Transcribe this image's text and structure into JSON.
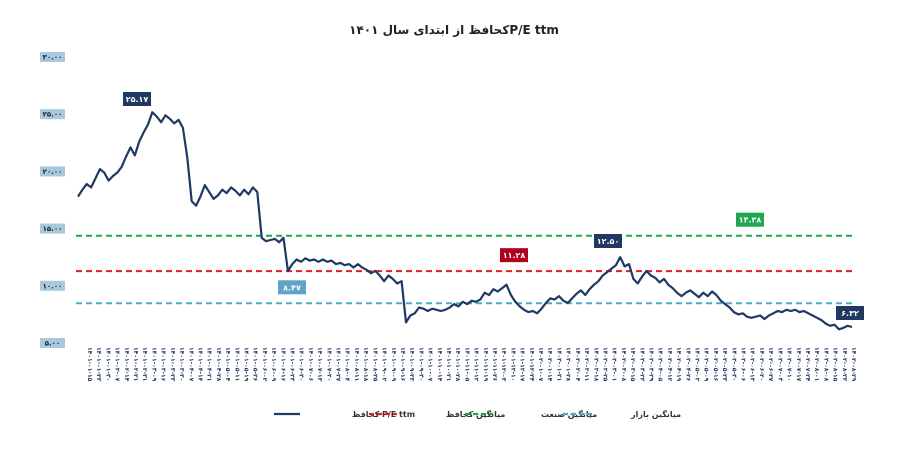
{
  "chart_data": {
    "type": "line",
    "title": "P/E ttmکحافظ از ابتدای سال ۱۴۰۱",
    "xlabel": "",
    "ylabel": "",
    "ylim": [
      5,
      30
    ],
    "yticks": [
      "۵.۰۰",
      "۱۰.۰۰",
      "۱۵.۰۰",
      "۲۰.۰۰",
      "۲۵.۰۰",
      "۳۰.۰۰"
    ],
    "ytick_values": [
      5,
      10,
      15,
      20,
      25,
      30
    ],
    "x_tick_labels": [
      "۱۴۰۱-۰۱-۱۵",
      "۱۴۰۱-۰۱-۲۳",
      "۱۴۰۱-۰۱-۳۰",
      "۱۴۰۱-۰۲-۰۷",
      "۱۴۰۱-۰۲-۱۴",
      "۱۴۰۱-۰۲-۲۱",
      "۱۴۰۱-۰۲-۳۱",
      "۱۴۰۱-۰۳-۰۹",
      "۱۴۰۱-۰۳-۱۶",
      "۱۴۰۱-۰۳-۲۳",
      "۱۴۰۱-۰۳-۳۰",
      "۱۴۰۱-۰۴-۰۷",
      "۱۴۰۱-۰۴-۱۴",
      "۱۴۰۱-۰۴-۲۱",
      "۱۴۰۱-۰۴-۲۸",
      "۱۴۰۱-۰۵-۰۴",
      "۱۴۰۱-۰۵-۱۱",
      "۱۴۰۱-۰۵-۱۹",
      "۱۴۰۱-۰۵-۲۶",
      "۱۴۰۱-۰۶-۰۲",
      "۱۴۰۱-۰۶-۰۹",
      "۱۴۰۱-۰۶-۱۶",
      "۱۴۰۱-۰۶-۲۳",
      "۱۴۰۱-۰۶-۳۰",
      "۱۴۰۱-۰۷-۰۶",
      "۱۴۰۱-۰۷-۱۳",
      "۱۴۰۱-۰۷-۲۰",
      "۱۴۰۱-۰۷-۲۷",
      "۱۴۰۱-۰۸-۰۴",
      "۱۴۰۱-۰۸-۱۱",
      "۱۴۰۱-۰۸-۱۸",
      "۱۴۰۱-۰۸-۲۵",
      "۱۴۰۱-۰۹-۰۲",
      "۱۴۰۱-۰۹-۰۹",
      "۱۴۰۱-۰۹-۱۶",
      "۱۴۰۱-۰۹-۲۳",
      "۱۴۰۱-۰۹-۳۰",
      "۱۴۰۱-۱۰-۰۷",
      "۱۴۰۱-۱۰-۱۴",
      "۱۴۰۱-۱۰-۲۱",
      "۱۴۰۱-۱۰-۲۸",
      "۱۴۰۱-۱۱-۰۵",
      "۱۴۰۱-۱۱-۱۲",
      "۱۴۰۱-۱۱-۱۹",
      "۱۴۰۱-۱۱-۲۶",
      "۱۴۰۱-۱۲-۰۳",
      "۱۴۰۱-۱۲-۱۰",
      "۱۴۰۱-۱۲-۱۷",
      "۱۴۰۱-۱۲-۲۴",
      "۱۴۰۲-۰۱-۰۷",
      "۱۴۰۲-۰۱-۱۴",
      "۱۴۰۲-۰۱-۲۱",
      "۱۴۰۲-۰۱-۲۸",
      "۱۴۰۲-۰۲-۰۴",
      "۱۴۰۲-۰۲-۱۱",
      "۱۴۰۲-۰۲-۱۸",
      "۱۴۰۲-۰۲-۲۵",
      "۱۴۰۲-۰۳-۰۱",
      "۱۴۰۲-۰۳-۰۸",
      "۱۴۰۲-۰۳-۱۵",
      "۱۴۰۲-۰۳-۲۲",
      "۱۴۰۲-۰۳-۲۹",
      "۱۴۰۲-۰۴-۰۵",
      "۱۴۰۲-۰۴-۱۲",
      "۱۴۰۲-۰۴-۱۹",
      "۱۴۰۲-۰۴-۲۶",
      "۱۴۰۲-۰۵-۰۲",
      "۱۴۰۲-۰۵-۰۹",
      "۱۴۰۲-۰۵-۱۶",
      "۱۴۰۲-۰۵-۲۳",
      "۱۴۰۲-۰۵-۳۰",
      "۱۴۰۲-۰۶-۰۶",
      "۱۴۰۲-۰۶-۱۳",
      "۱۴۰۲-۰۶-۲۰",
      "۱۴۰۲-۰۶-۲۷",
      "۱۴۰۲-۰۷-۰۳",
      "۱۴۰۲-۰۷-۱۰",
      "۱۴۰۲-۰۷-۱۷",
      "۱۴۰۲-۰۷-۲۴",
      "۱۴۰۲-۰۸-۰۱",
      "۱۴۰۲-۰۸-۰۸",
      "۱۴۰۲-۰۸-۱۵",
      "۱۴۰۲-۰۸-۲۲",
      "۱۴۰۲-۰۸-۲۹"
    ],
    "series": [
      {
        "name": "P/E ttm کحافظ",
        "color": "#1f3864",
        "values": [
          17.8,
          18.4,
          18.9,
          18.6,
          19.4,
          20.2,
          19.9,
          19.2,
          19.6,
          19.9,
          20.4,
          21.3,
          22.1,
          21.4,
          22.6,
          23.4,
          24.1,
          25.17,
          24.8,
          24.3,
          24.9,
          24.6,
          24.2,
          24.5,
          23.8,
          21.2,
          17.4,
          17.0,
          17.8,
          18.8,
          18.2,
          17.6,
          17.9,
          18.4,
          18.1,
          18.6,
          18.3,
          17.9,
          18.4,
          18.0,
          18.6,
          18.2,
          14.2,
          13.9,
          14.0,
          14.1,
          13.8,
          14.2,
          11.3,
          11.9,
          12.3,
          12.1,
          12.4,
          12.2,
          12.3,
          12.1,
          12.3,
          12.1,
          12.2,
          11.9,
          12.0,
          11.8,
          11.9,
          11.6,
          11.9,
          11.6,
          11.4,
          11.1,
          11.3,
          10.9,
          10.4,
          10.9,
          10.6,
          10.2,
          10.4,
          6.8,
          7.4,
          7.6,
          8.1,
          8.0,
          7.8,
          8.0,
          7.9,
          7.8,
          7.9,
          8.1,
          8.4,
          8.2,
          8.6,
          8.4,
          8.7,
          8.6,
          8.8,
          9.4,
          9.2,
          9.7,
          9.5,
          9.8,
          10.1,
          9.2,
          8.6,
          8.2,
          7.9,
          7.7,
          7.8,
          7.6,
          8.0,
          8.5,
          8.9,
          8.8,
          9.1,
          8.7,
          8.5,
          8.9,
          9.3,
          9.6,
          9.2,
          9.7,
          10.1,
          10.4,
          10.9,
          11.2,
          11.5,
          11.8,
          12.5,
          11.7,
          11.9,
          10.6,
          10.2,
          10.8,
          11.3,
          10.9,
          10.7,
          10.3,
          10.6,
          10.1,
          9.8,
          9.4,
          9.1,
          9.4,
          9.6,
          9.3,
          9.0,
          9.4,
          9.1,
          9.5,
          9.2,
          8.7,
          8.4,
          8.1,
          7.7,
          7.5,
          7.6,
          7.3,
          7.2,
          7.3,
          7.4,
          7.1,
          7.4,
          7.6,
          7.8,
          7.7,
          7.9,
          7.8,
          7.9,
          7.7,
          7.8,
          7.6,
          7.4,
          7.2,
          7.0,
          6.7,
          6.5,
          6.6,
          6.2,
          6.32,
          6.5,
          6.4
        ]
      }
    ],
    "reference_lines": [
      {
        "name": "میانگین کحافظ",
        "value": 11.28,
        "label": "۱۱.۲۸",
        "color": "#e31e24",
        "badge_color": "#b00020"
      },
      {
        "name": "میانگین صنعت",
        "value": 14.38,
        "label": "۱۴.۳۸",
        "color": "#1fa84f",
        "badge_color": "#1fa84f"
      },
      {
        "name": "میانگین بازار",
        "value": 8.47,
        "label": "۸.۴۷",
        "color": "#4bacc6",
        "badge_color": "#5fa3c8"
      }
    ],
    "annotations": [
      {
        "label": "۲۵.۱۷",
        "value": 25.17,
        "color": "#1f3864"
      },
      {
        "label": "۱۲.۵۰",
        "value": 12.5,
        "color": "#1f3864"
      },
      {
        "label": "۶.۳۲",
        "value": 6.32,
        "color": "#1f3864"
      }
    ],
    "legend": [
      "P/E ttm کحافظ",
      "میانگین کحافظ",
      "میانگین صنعت",
      "میانگین بازار"
    ],
    "legend_position": "bottom",
    "grid": false
  }
}
